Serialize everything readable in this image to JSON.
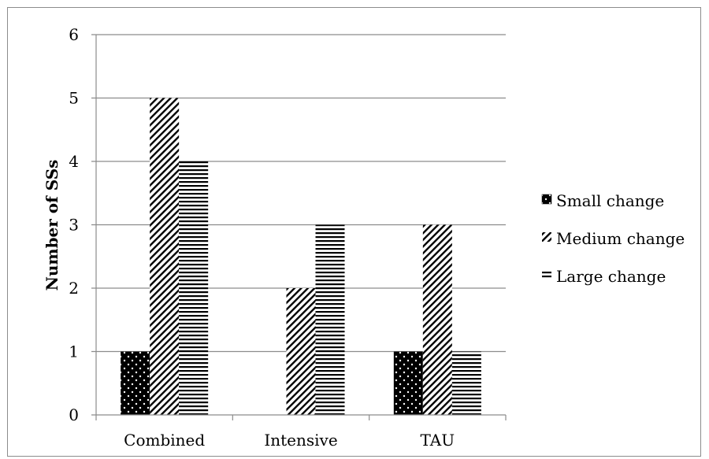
{
  "chart_data": {
    "type": "bar",
    "categories": [
      "Combined",
      "Intensive",
      "TAU"
    ],
    "series": [
      {
        "name": "Small change",
        "values": [
          1,
          0,
          1
        ],
        "pattern": "dots"
      },
      {
        "name": "Medium change",
        "values": [
          5,
          2,
          3
        ],
        "pattern": "diagonal"
      },
      {
        "name": "Large change",
        "values": [
          4,
          3,
          1
        ],
        "pattern": "horizontal"
      }
    ],
    "ylabel": "Number of SSs",
    "xlabel": "",
    "ylim": [
      0,
      6
    ],
    "yticks": [
      0,
      1,
      2,
      3,
      4,
      5,
      6
    ],
    "grid": true,
    "legend_position": "right",
    "colors": {
      "bar_fill": "#000000",
      "background": "#ffffff",
      "grid": "#8c8c8c",
      "axis": "#8c8c8c"
    }
  }
}
